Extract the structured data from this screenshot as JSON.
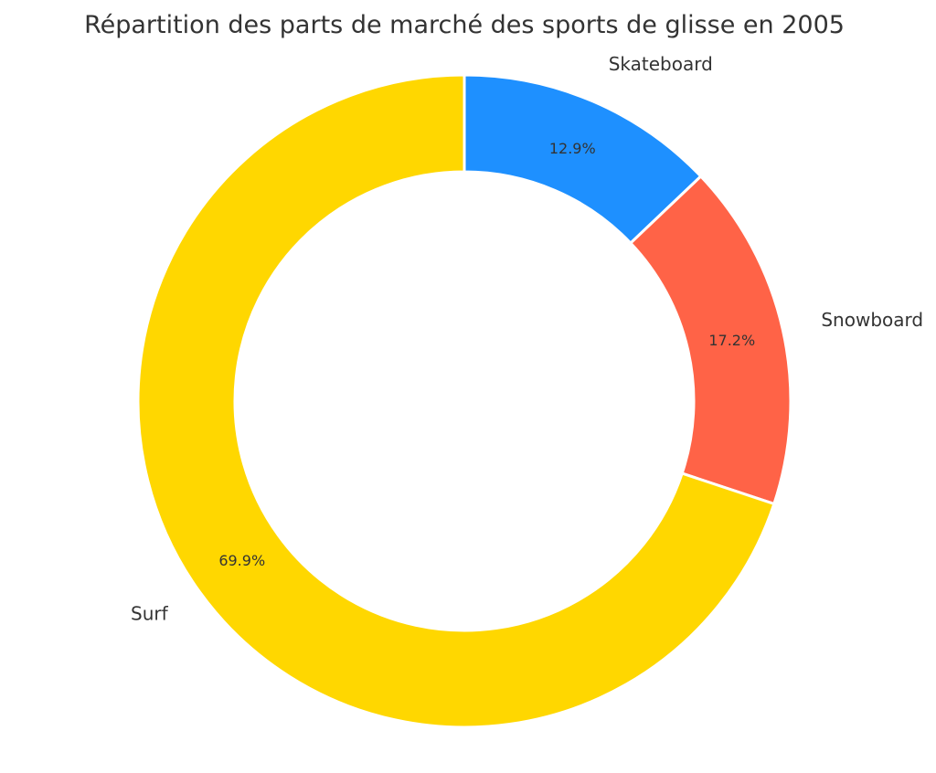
{
  "chart_data": {
    "type": "pie",
    "variant": "donut",
    "title": "Répartition des parts de marché des sports de glisse en 2005",
    "categories": [
      "Skateboard",
      "Snowboard",
      "Surf"
    ],
    "values": [
      12.9,
      17.2,
      69.9
    ],
    "value_labels": [
      "12.9%",
      "17.2%",
      "69.9%"
    ],
    "colors": [
      "#1e90ff",
      "#ff6347",
      "#ffd700"
    ],
    "start_angle": "top",
    "direction": "clockwise",
    "legend": "none"
  }
}
